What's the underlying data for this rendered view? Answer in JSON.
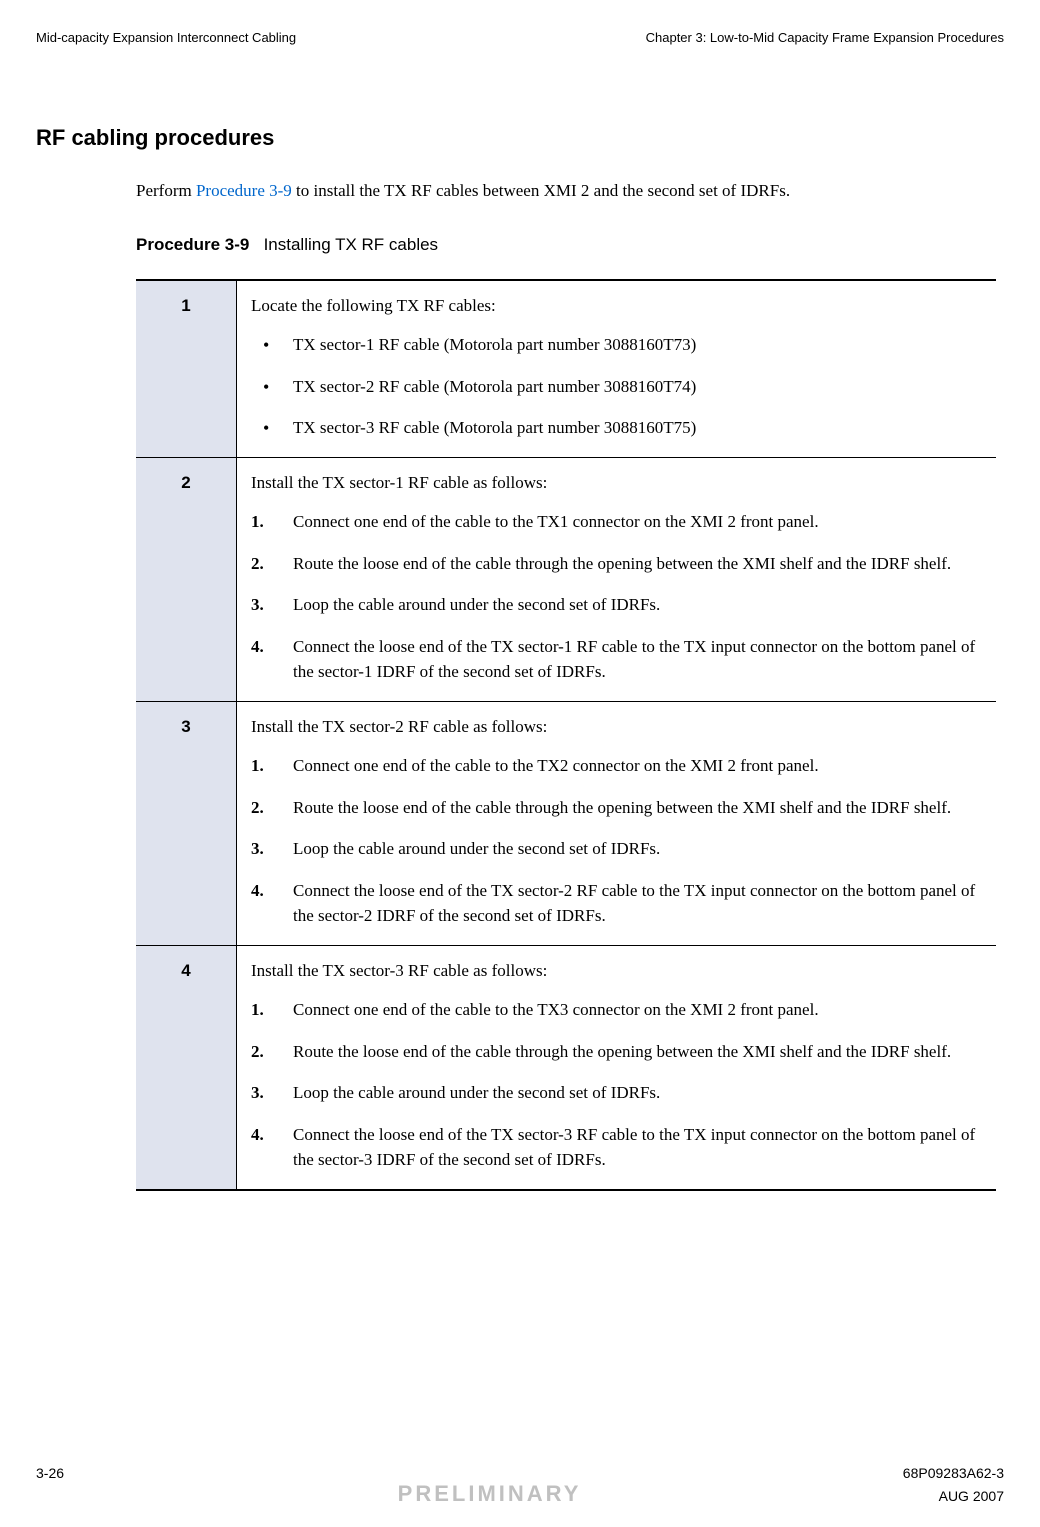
{
  "header": {
    "left": "Mid-capacity Expansion Interconnect Cabling",
    "right": "Chapter 3: Low-to-Mid Capacity Frame Expansion Procedures"
  },
  "section_title": "RF cabling procedures",
  "intro": {
    "prefix": "Perform ",
    "link": "Procedure 3-9",
    "suffix": " to install the TX RF cables between XMI 2 and the second set of IDRFs."
  },
  "procedure": {
    "number": "Procedure 3-9",
    "title": "Installing TX RF cables"
  },
  "steps": [
    {
      "num": "1",
      "lead": "Locate the following TX RF cables:",
      "bullets": [
        "TX sector-1 RF cable (Motorola part number 3088160T73)",
        "TX sector-2 RF cable (Motorola part number 3088160T74)",
        "TX sector-3 RF cable (Motorola part number 3088160T75)"
      ]
    },
    {
      "num": "2",
      "lead": "Install the TX sector-1 RF cable as follows:",
      "substeps": [
        "Connect one end of the cable to the TX1 connector on the XMI 2 front panel.",
        "Route the loose end of the cable through the opening between the XMI shelf and the IDRF shelf.",
        "Loop the cable around under the second set of IDRFs.",
        "Connect the loose end of the TX sector-1 RF cable to the TX input connector on the bottom panel of the sector-1 IDRF of the second set of IDRFs."
      ]
    },
    {
      "num": "3",
      "lead": "Install the TX sector-2 RF cable as follows:",
      "substeps": [
        "Connect one end of the cable to the TX2 connector on the XMI 2 front panel.",
        "Route the loose end of the cable through the opening between the XMI shelf and the IDRF shelf.",
        "Loop the cable around under the second set of IDRFs.",
        "Connect the loose end of the TX sector-2 RF cable to the TX input connector on the bottom panel of the sector-2 IDRF of the second set of IDRFs."
      ]
    },
    {
      "num": "4",
      "lead": "Install the TX sector-3 RF cable as follows:",
      "substeps": [
        "Connect one end of the cable to the TX3 connector on the XMI 2 front panel.",
        "Route the loose end of the cable through the opening between the XMI shelf and the IDRF shelf.",
        "Loop the cable around under the second set of IDRFs.",
        "Connect the loose end of the TX sector-3 RF cable to the TX input connector on the bottom panel of the sector-3 IDRF of the second set of IDRFs."
      ]
    }
  ],
  "footer": {
    "page_num": "3-26",
    "doc_num": "68P09283A62-3",
    "watermark": "PRELIMINARY",
    "date": "AUG 2007"
  }
}
